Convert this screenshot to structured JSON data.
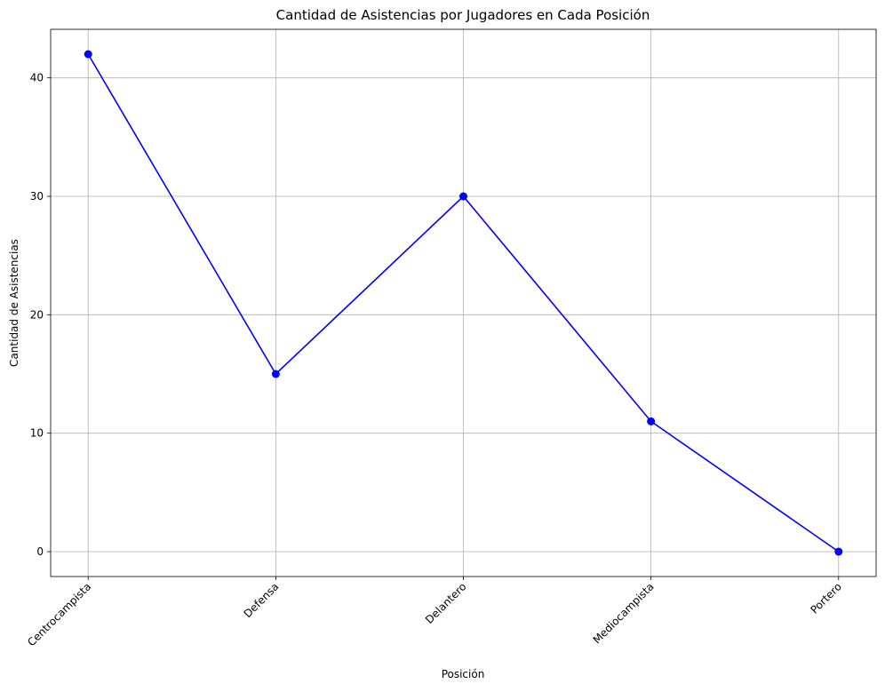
{
  "chart_data": {
    "type": "line",
    "title": "Cantidad de Asistencias por Jugadores en Cada Posición",
    "xlabel": "Posición",
    "ylabel": "Cantidad de Asistencias",
    "categories": [
      "Centrocampista",
      "Defensa",
      "Delantero",
      "Mediocampista",
      "Portero"
    ],
    "series": [
      {
        "values": [
          42,
          15,
          30,
          11,
          0
        ],
        "color": "#0000ff",
        "marker": "circle"
      }
    ],
    "ylim": [
      -2.1,
      44.1
    ],
    "yticks": [
      0,
      10,
      20,
      30,
      40
    ],
    "grid": true,
    "xtick_rotation": 45,
    "legend": "none"
  }
}
